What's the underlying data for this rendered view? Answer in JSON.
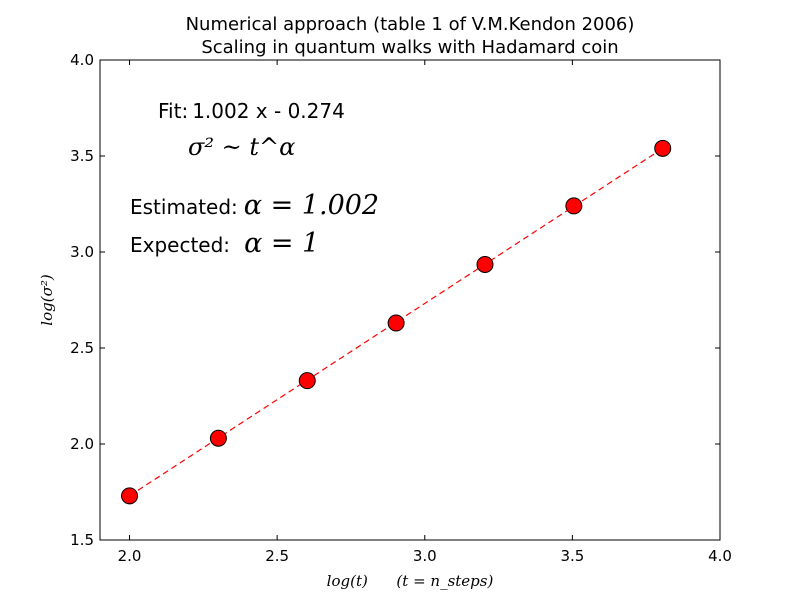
{
  "chart_data": {
    "type": "scatter",
    "title": "Numerical approach (table 1 of V.M.Kendon 2006)",
    "subtitle": "Scaling in quantum walks with Hadamard coin",
    "xlabel": "log(t)      (t = n_steps)",
    "ylabel": "log(σ²)",
    "xlim": [
      1.9,
      4.0
    ],
    "ylim": [
      1.5,
      4.0
    ],
    "xticks": [
      2.0,
      2.5,
      3.0,
      3.5,
      4.0
    ],
    "xtick_labels": [
      "2.0",
      "2.5",
      "3.0",
      "3.5",
      "4.0"
    ],
    "yticks": [
      1.5,
      2.0,
      2.5,
      3.0,
      3.5,
      4.0
    ],
    "ytick_labels": [
      "1.5",
      "2.0",
      "2.5",
      "3.0",
      "3.5",
      "4.0"
    ],
    "grid": false,
    "series": [
      {
        "color": "#ff0000",
        "marker": "circle",
        "points": [
          {
            "x": 2.0,
            "y": 1.73
          },
          {
            "x": 2.301,
            "y": 2.03
          },
          {
            "x": 2.602,
            "y": 2.33
          },
          {
            "x": 2.903,
            "y": 2.63
          },
          {
            "x": 3.204,
            "y": 2.935
          },
          {
            "x": 3.505,
            "y": 3.24
          },
          {
            "x": 3.806,
            "y": 3.54
          }
        ]
      }
    ],
    "fit_line": {
      "slope": 1.002,
      "intercept": -0.274,
      "x_range": [
        2.0,
        3.806
      ],
      "color": "#ff0000",
      "style": "dashed"
    },
    "annotations": {
      "fit_label": "Fit:",
      "fit_text": "1.002 x - 0.274",
      "law": "σ² ~ t^α",
      "estimated_label": "Estimated:",
      "estimated_value": "α = 1.002",
      "expected_label": "Expected:",
      "expected_value": "α = 1"
    }
  }
}
